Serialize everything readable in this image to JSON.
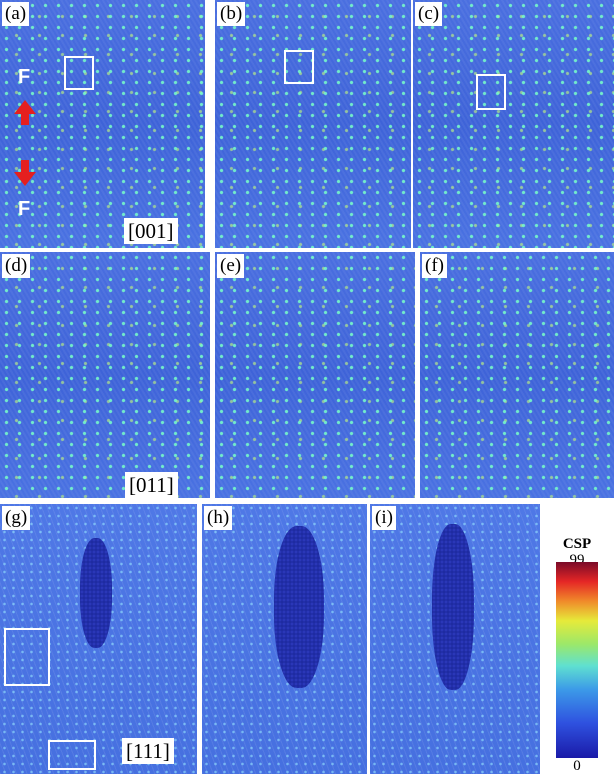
{
  "panels": [
    {
      "label": "(a)"
    },
    {
      "label": "(b)"
    },
    {
      "label": "(c)"
    },
    {
      "label": "(d)"
    },
    {
      "label": "(e)"
    },
    {
      "label": "(f)"
    },
    {
      "label": "(g)"
    },
    {
      "label": "(h)"
    },
    {
      "label": "(i)"
    }
  ],
  "force_labels": [
    "F",
    "F"
  ],
  "directions": [
    "[001]",
    "[011]",
    "[111]"
  ],
  "colorbar": {
    "title": "CSP",
    "max": "99",
    "min": "0"
  }
}
